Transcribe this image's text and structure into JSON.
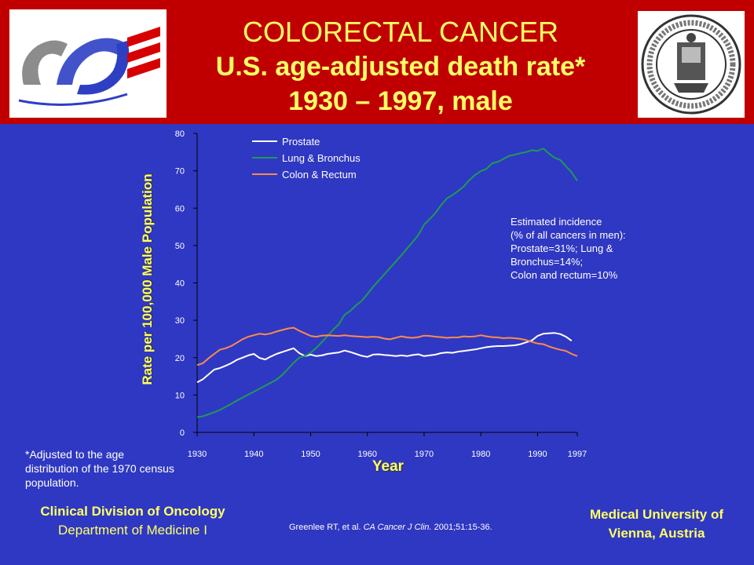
{
  "header": {
    "title": "COLORECTAL CANCER",
    "subtitle1": "U.S. age-adjusted death rate*",
    "subtitle2": "1930 – 1997, male"
  },
  "colors": {
    "header_bg": "#c00000",
    "main_bg": "#2f38c2",
    "title_text": "#ffff66",
    "prostate": "#ffffff",
    "lung": "#1e9a57",
    "colon": "#ff8a4c"
  },
  "logos": {
    "left": "logo",
    "right": "university-seal"
  },
  "footnote": "*Adjusted to the age distribution of the 1970 census population.",
  "left_footer": {
    "line1": "Clinical Division of Oncology",
    "line2": "Department of Medicine I"
  },
  "right_footer": {
    "line1": "Medical University of",
    "line2": "Vienna, Austria"
  },
  "citation": {
    "prefix": "Greenlee RT, et al. ",
    "journal": "CA Cancer J Clin.",
    "suffix": " 2001;51:15-36."
  },
  "annotation": {
    "line1": "Estimated incidence",
    "line2": "(% of all cancers in men):",
    "line3": "Prostate=31%; Lung &",
    "line4": "Bronchus=14%;",
    "line5": "Colon and rectum=10%"
  },
  "chart_data": {
    "type": "line",
    "xlabel": "Year",
    "ylabel": "Rate per 100,000  Male Population",
    "xlim": [
      1930,
      1997
    ],
    "ylim": [
      0,
      80
    ],
    "x_ticks": [
      1930,
      1940,
      1950,
      1960,
      1970,
      1980,
      1990,
      1997
    ],
    "y_ticks": [
      0,
      10,
      20,
      30,
      40,
      50,
      60,
      70,
      80
    ],
    "legend_position": "top-left",
    "series": [
      {
        "name": "Prostate",
        "x": [
          1930,
          1931,
          1932,
          1933,
          1934,
          1935,
          1936,
          1937,
          1938,
          1939,
          1940,
          1941,
          1942,
          1943,
          1944,
          1945,
          1946,
          1947,
          1948,
          1949,
          1950,
          1951,
          1952,
          1953,
          1954,
          1955,
          1956,
          1957,
          1958,
          1959,
          1960,
          1961,
          1962,
          1963,
          1964,
          1965,
          1966,
          1967,
          1968,
          1969,
          1970,
          1971,
          1972,
          1973,
          1974,
          1975,
          1976,
          1977,
          1978,
          1979,
          1980,
          1981,
          1982,
          1983,
          1984,
          1985,
          1986,
          1987,
          1988,
          1989,
          1990,
          1991,
          1992,
          1993,
          1994,
          1995,
          1996
        ],
        "values": [
          13.4,
          14.2,
          15.5,
          16.8,
          17.2,
          17.8,
          18.5,
          19.4,
          20.0,
          20.6,
          21.0,
          19.9,
          19.5,
          20.3,
          21.0,
          21.5,
          22.0,
          22.5,
          21.2,
          20.4,
          20.8,
          20.4,
          20.6,
          21.0,
          21.2,
          21.4,
          21.9,
          21.5,
          21.0,
          20.5,
          20.2,
          20.8,
          20.9,
          20.7,
          20.6,
          20.4,
          20.6,
          20.4,
          20.7,
          20.9,
          20.4,
          20.6,
          20.8,
          21.2,
          21.4,
          21.3,
          21.6,
          21.8,
          22.0,
          22.2,
          22.5,
          22.8,
          23.0,
          23.1,
          23.1,
          23.2,
          23.3,
          23.6,
          24.1,
          24.6,
          25.8,
          26.4,
          26.5,
          26.6,
          26.3,
          25.6,
          24.5
        ]
      },
      {
        "name": "Lung & Bronchus",
        "x": [
          1930,
          1931,
          1932,
          1933,
          1934,
          1935,
          1936,
          1937,
          1938,
          1939,
          1940,
          1941,
          1942,
          1943,
          1944,
          1945,
          1946,
          1947,
          1948,
          1949,
          1950,
          1951,
          1952,
          1953,
          1954,
          1955,
          1956,
          1957,
          1958,
          1959,
          1960,
          1961,
          1962,
          1963,
          1964,
          1965,
          1966,
          1967,
          1968,
          1969,
          1970,
          1971,
          1972,
          1973,
          1974,
          1975,
          1976,
          1977,
          1978,
          1979,
          1980,
          1981,
          1982,
          1983,
          1984,
          1985,
          1986,
          1987,
          1988,
          1989,
          1990,
          1991,
          1992,
          1993,
          1994,
          1995,
          1996,
          1997
        ],
        "values": [
          4.1,
          4.3,
          4.8,
          5.4,
          6.0,
          6.8,
          7.6,
          8.5,
          9.3,
          10.1,
          10.9,
          11.7,
          12.5,
          13.3,
          14.1,
          15.4,
          17.0,
          18.6,
          20.0,
          20.5,
          21.3,
          22.6,
          24.2,
          25.8,
          27.5,
          29.0,
          31.5,
          32.5,
          34.0,
          35.2,
          37.0,
          38.9,
          40.6,
          42.3,
          44.0,
          45.7,
          47.4,
          49.2,
          51.0,
          52.8,
          55.6,
          57.1,
          58.7,
          60.8,
          62.6,
          63.5,
          64.6,
          65.8,
          67.5,
          68.9,
          69.9,
          70.5,
          72.0,
          72.4,
          73.2,
          74.0,
          74.3,
          74.7,
          75.0,
          75.5,
          75.3,
          76.0,
          74.6,
          73.5,
          72.9,
          71.2,
          69.6,
          67.3
        ]
      },
      {
        "name": "Colon & Rectum",
        "x": [
          1930,
          1931,
          1932,
          1933,
          1934,
          1935,
          1936,
          1937,
          1938,
          1939,
          1940,
          1941,
          1942,
          1943,
          1944,
          1945,
          1946,
          1947,
          1948,
          1949,
          1950,
          1951,
          1952,
          1953,
          1954,
          1955,
          1956,
          1957,
          1958,
          1959,
          1960,
          1961,
          1962,
          1963,
          1964,
          1965,
          1966,
          1967,
          1968,
          1969,
          1970,
          1971,
          1972,
          1973,
          1974,
          1975,
          1976,
          1977,
          1978,
          1979,
          1980,
          1981,
          1982,
          1983,
          1984,
          1985,
          1986,
          1987,
          1988,
          1989,
          1990,
          1991,
          1992,
          1993,
          1994,
          1995,
          1996,
          1997
        ],
        "values": [
          18.0,
          18.5,
          19.8,
          21.0,
          22.1,
          22.5,
          23.1,
          24.0,
          24.9,
          25.6,
          26.0,
          26.4,
          26.2,
          26.5,
          27.0,
          27.4,
          27.8,
          28.0,
          27.2,
          26.5,
          25.8,
          25.6,
          25.9,
          26.0,
          25.9,
          25.8,
          26.0,
          25.8,
          25.7,
          25.6,
          25.5,
          25.6,
          25.5,
          25.1,
          24.9,
          25.3,
          25.7,
          25.4,
          25.3,
          25.5,
          25.9,
          25.8,
          25.6,
          25.5,
          25.3,
          25.4,
          25.4,
          25.7,
          25.6,
          25.7,
          26.0,
          25.7,
          25.5,
          25.4,
          25.2,
          25.3,
          25.2,
          25.0,
          24.7,
          24.2,
          23.8,
          23.6,
          23.0,
          22.5,
          22.1,
          21.8,
          21.0,
          20.4
        ]
      }
    ]
  }
}
